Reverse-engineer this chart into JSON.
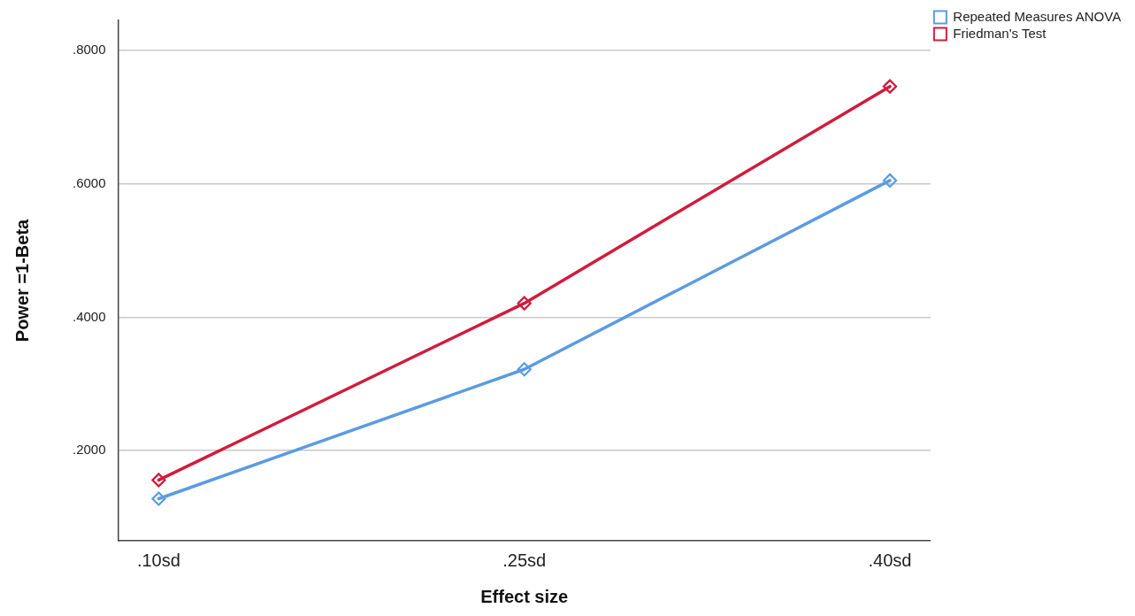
{
  "chart_data": {
    "type": "line",
    "xlabel": "Effect size",
    "ylabel": "Power =1-Beta",
    "categories": [
      ".10sd",
      ".25sd",
      ".40sd"
    ],
    "series": [
      {
        "name": "Repeated Measures ANOVA",
        "color": "#5b9be0",
        "values": [
          0.128,
          0.322,
          0.605
        ]
      },
      {
        "name": "Friedman's Test",
        "color": "#d01c3c",
        "values": [
          0.156,
          0.421,
          0.746
        ]
      }
    ],
    "ylim": [
      0.065,
      0.845
    ],
    "yticks": [
      {
        "value": 0.2,
        "label": ".2000"
      },
      {
        "value": 0.4,
        "label": ".4000"
      },
      {
        "value": 0.6,
        "label": ".6000"
      },
      {
        "value": 0.8,
        "label": ".8000"
      }
    ],
    "grid": "y",
    "legend": "top right",
    "marker": "diamond",
    "line_style": "solid"
  }
}
